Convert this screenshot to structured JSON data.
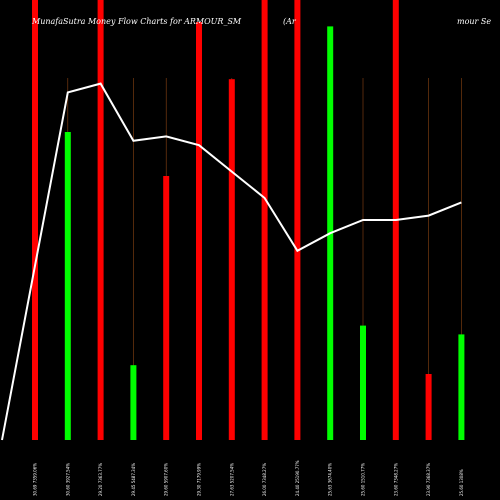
{
  "chart_data": {
    "type": "bar",
    "title_left": "MunafaSutra  Money Flow  Charts for ARMOUR_SM",
    "title_mid": "(Ar",
    "title_right": "mour Se",
    "categories": [
      "30.69 7359.06%",
      "30.60 3927.54%",
      "29.20 7363.77%",
      "29.45 5487.34%",
      "29.60 5907.60%",
      "29.30 7179.99%",
      "27.63 5207.54%",
      "26.00 7348.27%",
      "24.40 25190.77%",
      "25.63 3674.40%",
      "25.60 1510.77%",
      "23.60 7348.27%",
      "23.90 7368.37%",
      "25.60 1308%"
    ],
    "colors": [
      "red",
      "green",
      "red",
      "green",
      "red",
      "red",
      "red",
      "red",
      "red",
      "green",
      "green",
      "red",
      "red",
      "green"
    ],
    "values": [
      100,
      70,
      100,
      17,
      60,
      95,
      82,
      100,
      100,
      94,
      26,
      100,
      15,
      24
    ],
    "line": [
      0,
      79,
      81,
      68,
      69,
      67,
      61,
      55,
      43,
      47,
      50,
      50,
      51,
      54
    ],
    "ylim": [
      0,
      100
    ],
    "red_color": "#ff0000",
    "green_color": "#00ff00",
    "line_color": "#ffffff",
    "wick_color": "#8b4513"
  }
}
